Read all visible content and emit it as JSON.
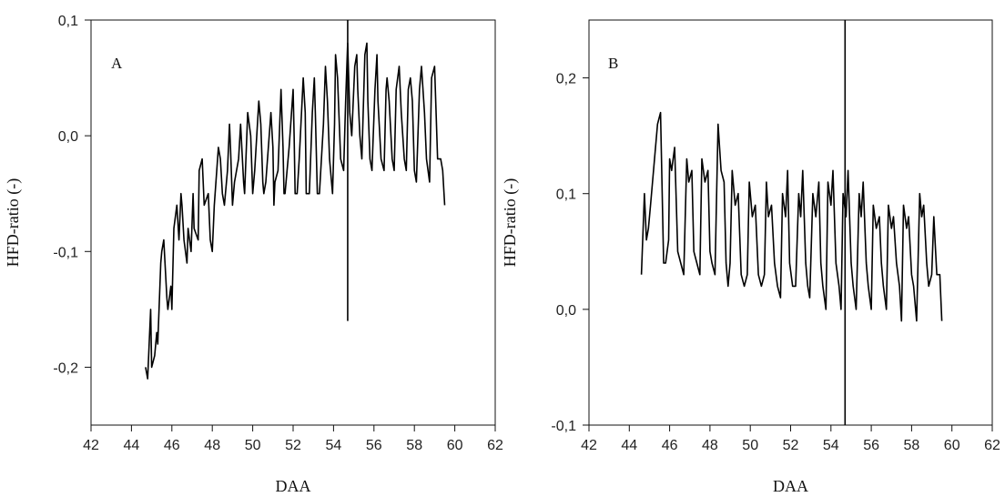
{
  "chart_data": [
    {
      "type": "line",
      "panel_label": "A",
      "title": "",
      "xlabel": "DAA",
      "ylabel": "HFD-ratio (-)",
      "xlim": [
        42,
        62
      ],
      "ylim": [
        -0.25,
        0.1
      ],
      "xticks": [
        42,
        44,
        46,
        48,
        50,
        52,
        54,
        56,
        58,
        60,
        62
      ],
      "xtick_labels": [
        "42",
        "44",
        "46",
        "48",
        "50",
        "52",
        "54",
        "56",
        "58",
        "60",
        "62"
      ],
      "yticks": [
        -0.2,
        -0.1,
        0.0,
        0.1
      ],
      "ytick_labels": [
        "-0,2",
        "-0,1",
        "0,0",
        "0,1"
      ],
      "grid": false,
      "vertical_line": {
        "x": 54.7,
        "y_from": -0.16,
        "y_to": 0.1
      },
      "series": [
        {
          "x": [
            44.7,
            44.8,
            44.95,
            45.0,
            45.15,
            45.25,
            45.3,
            45.45,
            45.5,
            45.6,
            45.75,
            45.8,
            45.95,
            46.0,
            46.1,
            46.25,
            46.35,
            46.45,
            46.5,
            46.6,
            46.75,
            46.8,
            46.95,
            47.05,
            47.1,
            47.3,
            47.35,
            47.5,
            47.55,
            47.6,
            47.8,
            47.9,
            48.0,
            48.05,
            48.1,
            48.3,
            48.4,
            48.5,
            48.6,
            48.75,
            48.85,
            48.9,
            49.0,
            49.05,
            49.1,
            49.3,
            49.4,
            49.55,
            49.6,
            49.75,
            49.9,
            50.0,
            50.05,
            50.1,
            50.3,
            50.4,
            50.5,
            50.55,
            50.65,
            50.9,
            51.0,
            51.05,
            51.1,
            51.25,
            51.4,
            51.5,
            51.55,
            51.6,
            51.8,
            52.0,
            52.05,
            52.1,
            52.2,
            52.3,
            52.5,
            52.6,
            52.65,
            52.8,
            52.95,
            53.05,
            53.1,
            53.2,
            53.3,
            53.5,
            53.6,
            53.7,
            53.8,
            53.95,
            54.05,
            54.1,
            54.2,
            54.35,
            54.5,
            54.6,
            54.7,
            54.8,
            54.9,
            55.05,
            55.15,
            55.2,
            55.3,
            55.4,
            55.55,
            55.65,
            55.7,
            55.8,
            55.9,
            56.05,
            56.15,
            56.2,
            56.35,
            56.5,
            56.6,
            56.65,
            56.75,
            56.9,
            57.0,
            57.1,
            57.25,
            57.35,
            57.5,
            57.6,
            57.7,
            57.8,
            57.9,
            58.0,
            58.1,
            58.25,
            58.35,
            58.5,
            58.6,
            58.75,
            58.85,
            59.0,
            59.15,
            59.3,
            59.4,
            59.5
          ],
          "y": [
            -0.2,
            -0.21,
            -0.15,
            -0.2,
            -0.19,
            -0.17,
            -0.18,
            -0.11,
            -0.1,
            -0.09,
            -0.14,
            -0.15,
            -0.13,
            -0.15,
            -0.08,
            -0.06,
            -0.09,
            -0.05,
            -0.06,
            -0.09,
            -0.11,
            -0.08,
            -0.1,
            -0.05,
            -0.08,
            -0.09,
            -0.03,
            -0.02,
            -0.04,
            -0.06,
            -0.05,
            -0.09,
            -0.1,
            -0.08,
            -0.06,
            -0.01,
            -0.02,
            -0.05,
            -0.06,
            -0.03,
            0.01,
            -0.01,
            -0.06,
            -0.05,
            -0.04,
            -0.02,
            0.01,
            -0.04,
            -0.05,
            0.02,
            0.0,
            -0.05,
            -0.04,
            -0.03,
            0.03,
            0.01,
            -0.04,
            -0.05,
            -0.04,
            0.02,
            -0.01,
            -0.06,
            -0.04,
            -0.03,
            0.04,
            -0.01,
            -0.05,
            -0.05,
            -0.01,
            0.04,
            0.0,
            -0.05,
            -0.05,
            -0.02,
            0.05,
            0.02,
            -0.05,
            -0.05,
            0.02,
            0.05,
            0.02,
            -0.05,
            -0.05,
            0.01,
            0.06,
            0.03,
            -0.02,
            -0.05,
            0.01,
            0.07,
            0.05,
            -0.02,
            -0.03,
            0.03,
            0.08,
            0.02,
            0.0,
            0.06,
            0.07,
            0.04,
            0.0,
            -0.02,
            0.07,
            0.08,
            0.03,
            -0.02,
            -0.03,
            0.04,
            0.07,
            0.03,
            -0.02,
            -0.03,
            0.04,
            0.05,
            0.03,
            -0.02,
            -0.03,
            0.04,
            0.06,
            0.02,
            -0.02,
            -0.03,
            0.04,
            0.05,
            0.03,
            -0.03,
            -0.04,
            0.04,
            0.06,
            0.02,
            -0.02,
            -0.04,
            0.05,
            0.06,
            -0.02,
            -0.02,
            -0.03,
            -0.06
          ]
        }
      ]
    },
    {
      "type": "line",
      "panel_label": "B",
      "title": "",
      "xlabel": "DAA",
      "ylabel": "HFD-ratio (-)",
      "xlim": [
        42,
        62
      ],
      "ylim": [
        -0.1,
        0.25
      ],
      "xticks": [
        42,
        44,
        46,
        48,
        50,
        52,
        54,
        56,
        58,
        60,
        62
      ],
      "xtick_labels": [
        "42",
        "44",
        "46",
        "48",
        "50",
        "52",
        "54",
        "56",
        "58",
        "60",
        "62"
      ],
      "yticks": [
        -0.1,
        0.0,
        0.1,
        0.2
      ],
      "ytick_labels": [
        "-0,1",
        "0,0",
        "0,1",
        "0,2"
      ],
      "grid": false,
      "vertical_line": {
        "x": 54.7,
        "y_from": -0.1,
        "y_to": 0.25
      },
      "series": [
        {
          "x": [
            44.6,
            44.75,
            44.85,
            44.95,
            45.05,
            45.25,
            45.4,
            45.55,
            45.7,
            45.8,
            45.95,
            46.0,
            46.1,
            46.25,
            46.4,
            46.55,
            46.7,
            46.85,
            46.95,
            47.1,
            47.2,
            47.35,
            47.5,
            47.6,
            47.75,
            47.9,
            48.0,
            48.1,
            48.25,
            48.4,
            48.55,
            48.7,
            48.8,
            48.9,
            49.0,
            49.1,
            49.25,
            49.4,
            49.55,
            49.7,
            49.85,
            49.95,
            50.1,
            50.25,
            50.4,
            50.55,
            50.7,
            50.8,
            50.9,
            51.05,
            51.2,
            51.35,
            51.5,
            51.6,
            51.75,
            51.85,
            51.95,
            52.1,
            52.25,
            52.4,
            52.5,
            52.6,
            52.75,
            52.85,
            52.95,
            53.1,
            53.25,
            53.4,
            53.5,
            53.6,
            53.75,
            53.85,
            54.0,
            54.1,
            54.25,
            54.4,
            54.5,
            54.6,
            54.75,
            54.85,
            55.0,
            55.1,
            55.25,
            55.4,
            55.5,
            55.6,
            55.75,
            55.85,
            56.0,
            56.1,
            56.25,
            56.4,
            56.5,
            56.6,
            56.75,
            56.85,
            57.0,
            57.1,
            57.25,
            57.4,
            57.5,
            57.6,
            57.75,
            57.85,
            58.0,
            58.1,
            58.25,
            58.4,
            58.5,
            58.6,
            58.75,
            58.85,
            59.0,
            59.1,
            59.25,
            59.4,
            59.5
          ],
          "y": [
            0.03,
            0.1,
            0.06,
            0.07,
            0.09,
            0.13,
            0.16,
            0.17,
            0.04,
            0.04,
            0.06,
            0.13,
            0.12,
            0.14,
            0.05,
            0.04,
            0.03,
            0.13,
            0.11,
            0.12,
            0.05,
            0.04,
            0.03,
            0.13,
            0.11,
            0.12,
            0.05,
            0.04,
            0.03,
            0.16,
            0.12,
            0.11,
            0.04,
            0.02,
            0.04,
            0.12,
            0.09,
            0.1,
            0.03,
            0.02,
            0.03,
            0.11,
            0.08,
            0.09,
            0.03,
            0.02,
            0.03,
            0.11,
            0.08,
            0.09,
            0.04,
            0.02,
            0.01,
            0.1,
            0.08,
            0.12,
            0.04,
            0.02,
            0.02,
            0.1,
            0.08,
            0.12,
            0.04,
            0.02,
            0.01,
            0.1,
            0.08,
            0.11,
            0.04,
            0.02,
            0.0,
            0.11,
            0.09,
            0.12,
            0.04,
            0.02,
            0.0,
            0.1,
            0.08,
            0.12,
            0.04,
            0.02,
            0.0,
            0.1,
            0.08,
            0.11,
            0.04,
            0.02,
            0.0,
            0.09,
            0.07,
            0.08,
            0.04,
            0.02,
            0.0,
            0.09,
            0.07,
            0.08,
            0.04,
            0.02,
            -0.01,
            0.09,
            0.07,
            0.08,
            0.03,
            0.02,
            -0.01,
            0.1,
            0.08,
            0.09,
            0.04,
            0.02,
            0.03,
            0.08,
            0.03,
            0.03,
            -0.01
          ]
        }
      ]
    }
  ]
}
